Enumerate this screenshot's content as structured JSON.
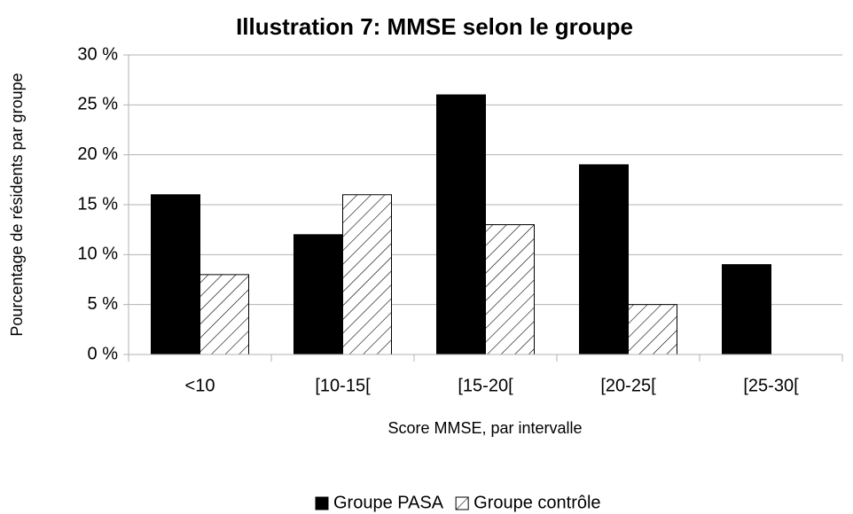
{
  "chart_data": {
    "type": "bar",
    "title": "Illustration 7: MMSE selon le groupe",
    "xlabel": "Score MMSE, par intervalle",
    "ylabel": "Pourcentage de résidents par groupe",
    "categories": [
      "<10",
      "[10-15[",
      "[15-20[",
      "[20-25[",
      "[25-30["
    ],
    "series": [
      {
        "name": "Groupe PASA",
        "color": "#000000",
        "values": [
          16,
          12,
          26,
          19,
          9
        ]
      },
      {
        "name": "Groupe contrôle",
        "color": "#000000",
        "pattern": "hatch",
        "values": [
          8,
          16,
          13,
          5,
          0
        ]
      }
    ],
    "ylim": [
      0,
      30
    ],
    "yticks": [
      {
        "value": 0,
        "label": "0 %"
      },
      {
        "value": 5,
        "label": "5 %"
      },
      {
        "value": 10,
        "label": "10 %"
      },
      {
        "value": 15,
        "label": "15 %"
      },
      {
        "value": 20,
        "label": "20 %"
      },
      {
        "value": 25,
        "label": "25 %"
      },
      {
        "value": 30,
        "label": "30 %"
      }
    ],
    "grid": true,
    "legend": "bottom"
  }
}
